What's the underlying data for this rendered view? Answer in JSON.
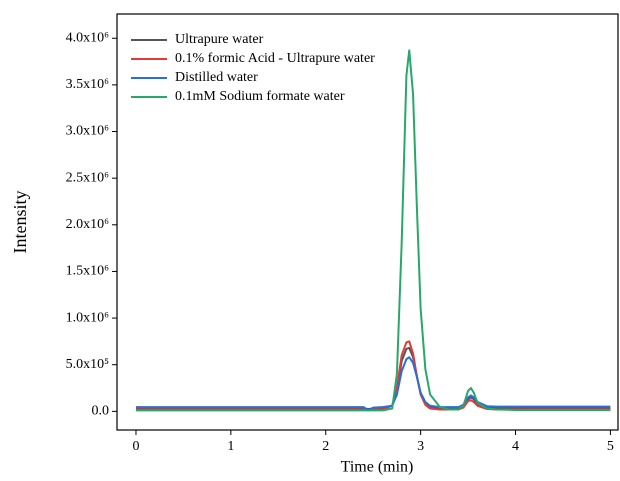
{
  "chart_data": {
    "type": "line",
    "x_label": "Time (min)",
    "y_label": "Intensity",
    "x": [
      0,
      0.5,
      1,
      1.5,
      2,
      2.4,
      2.45,
      2.5,
      2.6,
      2.7,
      2.75,
      2.8,
      2.85,
      2.88,
      2.92,
      2.96,
      3,
      3.05,
      3.1,
      3.2,
      3.3,
      3.4,
      3.45,
      3.5,
      3.53,
      3.56,
      3.6,
      3.7,
      3.8,
      4,
      4.5,
      5
    ],
    "series": [
      {
        "name": "Ultrapure water",
        "color": "#555555",
        "values": [
          30000,
          30000,
          30000,
          30000,
          30000,
          30000,
          25000,
          30000,
          30000,
          60000,
          220000,
          540000,
          670000,
          680000,
          580000,
          380000,
          190000,
          90000,
          50000,
          35000,
          30000,
          30000,
          50000,
          130000,
          150000,
          130000,
          80000,
          40000,
          35000,
          30000,
          30000,
          30000
        ]
      },
      {
        "name": "0.1% formic Acid - Ultrapure water",
        "color": "#e03a3a",
        "values": [
          20000,
          20000,
          20000,
          20000,
          20000,
          20000,
          15000,
          20000,
          20000,
          60000,
          250000,
          600000,
          740000,
          750000,
          620000,
          380000,
          180000,
          70000,
          30000,
          20000,
          20000,
          20000,
          40000,
          110000,
          120000,
          100000,
          60000,
          25000,
          20000,
          20000,
          20000,
          20000
        ]
      },
      {
        "name": "Distilled water",
        "color": "#2a6fd6",
        "values": [
          45000,
          45000,
          45000,
          45000,
          45000,
          45000,
          10000,
          40000,
          45000,
          60000,
          180000,
          430000,
          560000,
          580000,
          520000,
          370000,
          200000,
          100000,
          60000,
          45000,
          45000,
          45000,
          70000,
          150000,
          170000,
          150000,
          100000,
          55000,
          50000,
          50000,
          50000,
          50000
        ]
      },
      {
        "name": "0.1mM Sodium formate water",
        "color": "#27a86a",
        "values": [
          10000,
          10000,
          10000,
          10000,
          10000,
          10000,
          10000,
          10000,
          10000,
          30000,
          400000,
          1800000,
          3600000,
          3870000,
          3400000,
          2200000,
          1100000,
          450000,
          180000,
          50000,
          20000,
          20000,
          60000,
          220000,
          250000,
          200000,
          90000,
          30000,
          20000,
          15000,
          15000,
          15000
        ]
      }
    ],
    "xlim": [
      -0.2,
      5.08
    ],
    "xticks": [
      0,
      1,
      2,
      3,
      4,
      5
    ],
    "ylim": [
      -200000,
      4260000
    ],
    "yticks": [
      {
        "value": 0,
        "label": "0.0"
      },
      {
        "value": 500000,
        "label": "5.0x10⁵"
      },
      {
        "value": 1000000,
        "label": "1.0x10⁶"
      },
      {
        "value": 1500000,
        "label": "1.5x10⁶"
      },
      {
        "value": 2000000,
        "label": "2.0x10⁶"
      },
      {
        "value": 2500000,
        "label": "2.5x10⁶"
      },
      {
        "value": 3000000,
        "label": "3.0x10⁶"
      },
      {
        "value": 3500000,
        "label": "3.5x10⁶"
      },
      {
        "value": 4000000,
        "label": "4.0x10⁶"
      }
    ],
    "legend": "upper left",
    "grid": false
  }
}
